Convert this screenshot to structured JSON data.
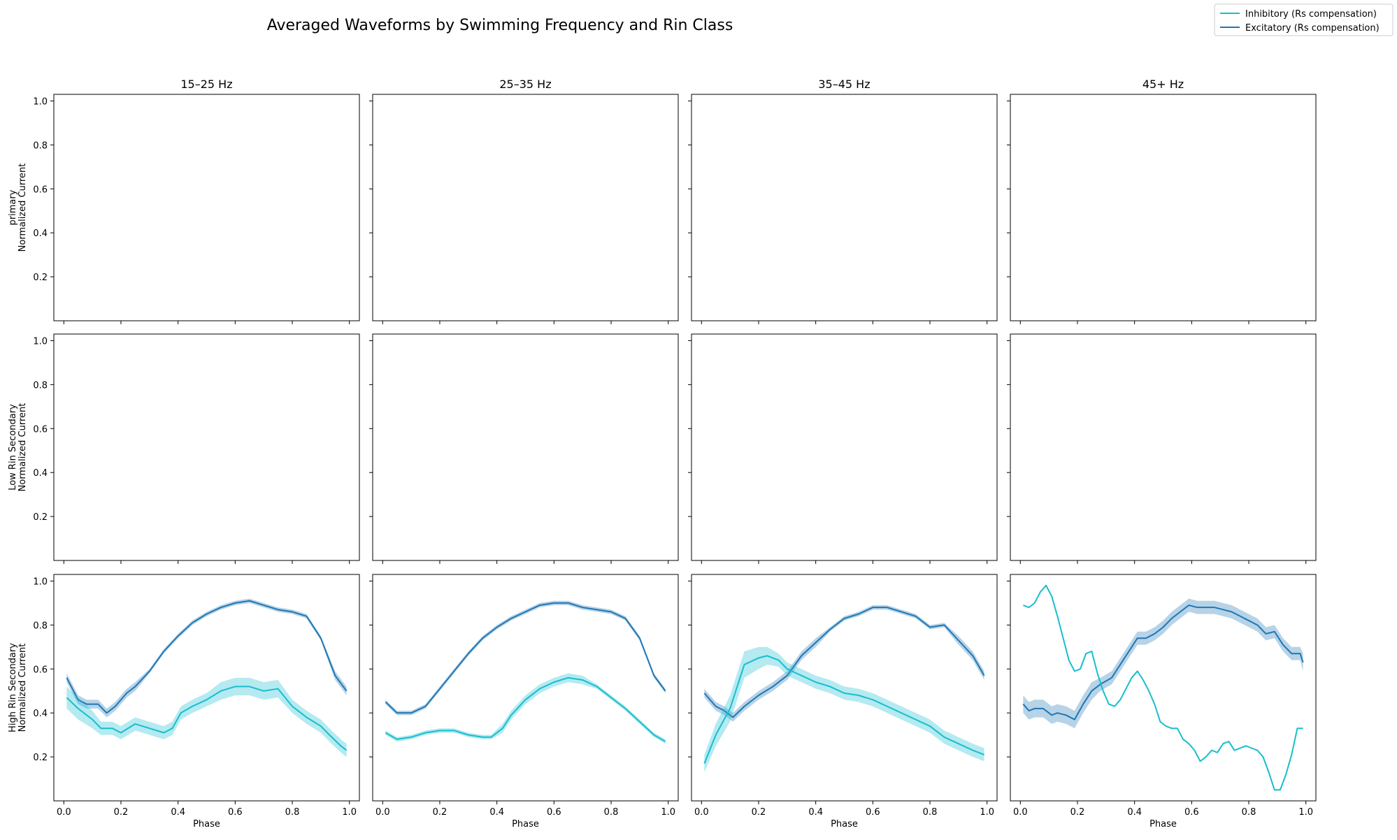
{
  "chart_data": {
    "type": "line",
    "title": "Averaged Waveforms by Swimming Frequency and Rin Class",
    "legend": {
      "placement": "top-right",
      "entries": [
        {
          "label": "Inhibitory (Rs compensation)",
          "color": "#17becf"
        },
        {
          "label": "Excitatory (Rs compensation)",
          "color": "#1f77b4"
        }
      ]
    },
    "xlabel": "Phase",
    "xlim": [
      -0.035,
      1.035
    ],
    "ylim": [
      0.0,
      1.03
    ],
    "xticks": [
      0.0,
      0.2,
      0.4,
      0.6,
      0.8,
      1.0
    ],
    "xtick_labels": [
      "0.0",
      "0.2",
      "0.4",
      "0.6",
      "0.8",
      "1.0"
    ],
    "yticks": [
      0.2,
      0.4,
      0.6,
      0.8,
      1.0
    ],
    "ytick_labels": [
      "0.2",
      "0.4",
      "0.6",
      "0.8",
      "1.0"
    ],
    "grid": false,
    "columns": [
      "15–25 Hz",
      "25–35 Hz",
      "35–45 Hz",
      "45+ Hz"
    ],
    "rows": [
      {
        "ylabel_line1": "primary",
        "ylabel_line2": "Normalized Current"
      },
      {
        "ylabel_line1": "Low Rin Secondary",
        "ylabel_line2": "Normalized Current"
      },
      {
        "ylabel_line1": "High Rin Secondary",
        "ylabel_line2": "Normalized Current"
      }
    ],
    "panels": [
      {
        "row": 0,
        "col": 0,
        "series": []
      },
      {
        "row": 0,
        "col": 1,
        "series": []
      },
      {
        "row": 0,
        "col": 2,
        "series": []
      },
      {
        "row": 0,
        "col": 3,
        "series": []
      },
      {
        "row": 1,
        "col": 0,
        "series": []
      },
      {
        "row": 1,
        "col": 1,
        "series": []
      },
      {
        "row": 1,
        "col": 2,
        "series": []
      },
      {
        "row": 1,
        "col": 3,
        "series": []
      },
      {
        "row": 2,
        "col": 0,
        "series": [
          {
            "kind": "excitatory",
            "color": "#1f77b4",
            "x": [
              0.01,
              0.05,
              0.08,
              0.12,
              0.15,
              0.18,
              0.22,
              0.25,
              0.3,
              0.35,
              0.4,
              0.45,
              0.5,
              0.55,
              0.6,
              0.65,
              0.7,
              0.75,
              0.8,
              0.85,
              0.9,
              0.95,
              0.99
            ],
            "y": [
              0.56,
              0.46,
              0.44,
              0.44,
              0.4,
              0.43,
              0.49,
              0.52,
              0.59,
              0.68,
              0.75,
              0.81,
              0.85,
              0.88,
              0.9,
              0.91,
              0.89,
              0.87,
              0.86,
              0.84,
              0.74,
              0.57,
              0.5
            ],
            "band": [
              0.02,
              0.02,
              0.02,
              0.02,
              0.02,
              0.02,
              0.02,
              0.02,
              0.01,
              0.01,
              0.01,
              0.01,
              0.01,
              0.01,
              0.01,
              0.01,
              0.01,
              0.01,
              0.01,
              0.01,
              0.01,
              0.02,
              0.02
            ]
          },
          {
            "kind": "inhibitory",
            "color": "#17becf",
            "x": [
              0.01,
              0.05,
              0.1,
              0.13,
              0.17,
              0.2,
              0.25,
              0.3,
              0.35,
              0.38,
              0.41,
              0.45,
              0.5,
              0.55,
              0.6,
              0.65,
              0.7,
              0.75,
              0.8,
              0.85,
              0.9,
              0.93,
              0.97,
              0.99
            ],
            "y": [
              0.47,
              0.42,
              0.37,
              0.33,
              0.33,
              0.31,
              0.35,
              0.33,
              0.31,
              0.33,
              0.4,
              0.43,
              0.46,
              0.5,
              0.52,
              0.52,
              0.5,
              0.51,
              0.43,
              0.38,
              0.34,
              0.3,
              0.25,
              0.23
            ],
            "band": [
              0.05,
              0.05,
              0.04,
              0.03,
              0.03,
              0.03,
              0.03,
              0.03,
              0.03,
              0.03,
              0.03,
              0.03,
              0.03,
              0.04,
              0.04,
              0.04,
              0.04,
              0.04,
              0.03,
              0.03,
              0.03,
              0.03,
              0.03,
              0.03
            ]
          }
        ]
      },
      {
        "row": 2,
        "col": 1,
        "series": [
          {
            "kind": "excitatory",
            "color": "#1f77b4",
            "x": [
              0.01,
              0.05,
              0.1,
              0.15,
              0.2,
              0.25,
              0.3,
              0.35,
              0.4,
              0.45,
              0.5,
              0.55,
              0.6,
              0.65,
              0.7,
              0.75,
              0.8,
              0.85,
              0.9,
              0.95,
              0.99
            ],
            "y": [
              0.45,
              0.4,
              0.4,
              0.43,
              0.51,
              0.59,
              0.67,
              0.74,
              0.79,
              0.83,
              0.86,
              0.89,
              0.9,
              0.9,
              0.88,
              0.87,
              0.86,
              0.83,
              0.74,
              0.57,
              0.5
            ],
            "band": [
              0.01,
              0.01,
              0.01,
              0.01,
              0.01,
              0.01,
              0.01,
              0.01,
              0.01,
              0.01,
              0.01,
              0.01,
              0.01,
              0.01,
              0.01,
              0.01,
              0.01,
              0.01,
              0.01,
              0.01,
              0.01
            ]
          },
          {
            "kind": "inhibitory",
            "color": "#17becf",
            "x": [
              0.01,
              0.05,
              0.1,
              0.15,
              0.2,
              0.25,
              0.3,
              0.35,
              0.38,
              0.42,
              0.45,
              0.5,
              0.55,
              0.6,
              0.65,
              0.7,
              0.75,
              0.8,
              0.85,
              0.9,
              0.95,
              0.99
            ],
            "y": [
              0.31,
              0.28,
              0.29,
              0.31,
              0.32,
              0.32,
              0.3,
              0.29,
              0.29,
              0.33,
              0.39,
              0.46,
              0.51,
              0.54,
              0.56,
              0.55,
              0.52,
              0.47,
              0.42,
              0.36,
              0.3,
              0.27
            ],
            "band": [
              0.01,
              0.01,
              0.01,
              0.01,
              0.01,
              0.01,
              0.01,
              0.01,
              0.01,
              0.02,
              0.02,
              0.02,
              0.02,
              0.02,
              0.02,
              0.02,
              0.01,
              0.01,
              0.01,
              0.01,
              0.01,
              0.01
            ]
          }
        ]
      },
      {
        "row": 2,
        "col": 2,
        "series": [
          {
            "kind": "excitatory",
            "color": "#1f77b4",
            "x": [
              0.01,
              0.05,
              0.08,
              0.11,
              0.15,
              0.2,
              0.25,
              0.3,
              0.35,
              0.4,
              0.45,
              0.5,
              0.55,
              0.6,
              0.65,
              0.7,
              0.75,
              0.8,
              0.85,
              0.9,
              0.95,
              0.99
            ],
            "y": [
              0.49,
              0.43,
              0.41,
              0.38,
              0.43,
              0.48,
              0.52,
              0.57,
              0.66,
              0.72,
              0.78,
              0.83,
              0.85,
              0.88,
              0.88,
              0.86,
              0.84,
              0.79,
              0.8,
              0.73,
              0.66,
              0.57
            ],
            "band": [
              0.02,
              0.02,
              0.02,
              0.02,
              0.02,
              0.02,
              0.02,
              0.02,
              0.02,
              0.02,
              0.01,
              0.01,
              0.01,
              0.01,
              0.01,
              0.01,
              0.01,
              0.01,
              0.01,
              0.02,
              0.02,
              0.02
            ]
          },
          {
            "kind": "inhibitory",
            "color": "#17becf",
            "x": [
              0.01,
              0.05,
              0.1,
              0.15,
              0.2,
              0.23,
              0.27,
              0.3,
              0.35,
              0.4,
              0.45,
              0.5,
              0.55,
              0.6,
              0.65,
              0.7,
              0.75,
              0.8,
              0.85,
              0.9,
              0.95,
              0.99
            ],
            "y": [
              0.17,
              0.3,
              0.42,
              0.62,
              0.65,
              0.66,
              0.64,
              0.6,
              0.57,
              0.54,
              0.52,
              0.49,
              0.48,
              0.46,
              0.43,
              0.4,
              0.37,
              0.34,
              0.29,
              0.26,
              0.23,
              0.21
            ],
            "band": [
              0.04,
              0.05,
              0.06,
              0.06,
              0.05,
              0.04,
              0.03,
              0.03,
              0.03,
              0.03,
              0.03,
              0.03,
              0.03,
              0.03,
              0.03,
              0.03,
              0.03,
              0.03,
              0.03,
              0.03,
              0.03,
              0.03
            ]
          }
        ]
      },
      {
        "row": 2,
        "col": 3,
        "series": [
          {
            "kind": "excitatory",
            "color": "#1f77b4",
            "x": [
              0.01,
              0.03,
              0.05,
              0.08,
              0.11,
              0.13,
              0.16,
              0.19,
              0.22,
              0.25,
              0.28,
              0.32,
              0.35,
              0.38,
              0.41,
              0.44,
              0.47,
              0.5,
              0.53,
              0.56,
              0.59,
              0.62,
              0.65,
              0.68,
              0.71,
              0.74,
              0.77,
              0.8,
              0.83,
              0.86,
              0.89,
              0.92,
              0.95,
              0.98,
              0.99
            ],
            "y": [
              0.44,
              0.41,
              0.42,
              0.42,
              0.39,
              0.4,
              0.39,
              0.37,
              0.44,
              0.5,
              0.53,
              0.56,
              0.62,
              0.68,
              0.74,
              0.74,
              0.76,
              0.79,
              0.83,
              0.86,
              0.89,
              0.88,
              0.88,
              0.88,
              0.87,
              0.86,
              0.84,
              0.82,
              0.8,
              0.76,
              0.77,
              0.71,
              0.67,
              0.67,
              0.63
            ],
            "band": [
              0.04,
              0.04,
              0.04,
              0.04,
              0.04,
              0.04,
              0.04,
              0.04,
              0.04,
              0.04,
              0.03,
              0.03,
              0.03,
              0.03,
              0.03,
              0.03,
              0.03,
              0.03,
              0.03,
              0.03,
              0.03,
              0.03,
              0.03,
              0.03,
              0.03,
              0.03,
              0.03,
              0.03,
              0.03,
              0.03,
              0.03,
              0.03,
              0.03,
              0.03,
              0.04
            ]
          },
          {
            "kind": "inhibitory",
            "color": "#17becf",
            "x": [
              0.01,
              0.03,
              0.05,
              0.07,
              0.09,
              0.11,
              0.13,
              0.15,
              0.17,
              0.19,
              0.21,
              0.23,
              0.25,
              0.27,
              0.29,
              0.31,
              0.33,
              0.35,
              0.37,
              0.39,
              0.41,
              0.43,
              0.45,
              0.47,
              0.49,
              0.51,
              0.53,
              0.55,
              0.57,
              0.59,
              0.61,
              0.63,
              0.65,
              0.67,
              0.69,
              0.71,
              0.73,
              0.75,
              0.77,
              0.79,
              0.81,
              0.83,
              0.85,
              0.87,
              0.89,
              0.91,
              0.93,
              0.95,
              0.97,
              0.99
            ],
            "y": [
              0.89,
              0.88,
              0.9,
              0.95,
              0.98,
              0.93,
              0.84,
              0.74,
              0.64,
              0.59,
              0.6,
              0.67,
              0.68,
              0.58,
              0.5,
              0.44,
              0.43,
              0.46,
              0.51,
              0.56,
              0.59,
              0.55,
              0.5,
              0.44,
              0.36,
              0.34,
              0.33,
              0.33,
              0.28,
              0.26,
              0.23,
              0.18,
              0.2,
              0.23,
              0.22,
              0.26,
              0.27,
              0.23,
              0.24,
              0.25,
              0.24,
              0.23,
              0.2,
              0.13,
              0.05,
              0.05,
              0.12,
              0.21,
              0.33,
              0.33
            ],
            "band": []
          }
        ]
      }
    ]
  }
}
